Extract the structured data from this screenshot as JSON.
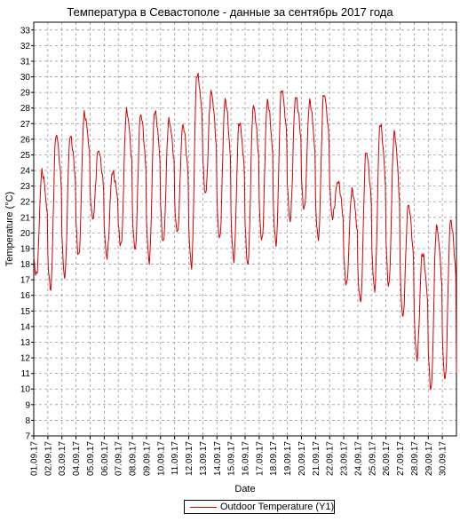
{
  "chart_data": {
    "type": "line",
    "title": "Температура в Севастополе - данные за сентябрь 2017 года",
    "xlabel": "Date",
    "ylabel": "Temperature (°C)",
    "ylim": [
      7,
      33.5
    ],
    "y_ticks": [
      7,
      8,
      9,
      10,
      11,
      12,
      13,
      14,
      15,
      16,
      17,
      18,
      19,
      20,
      21,
      22,
      23,
      24,
      25,
      26,
      27,
      28,
      29,
      30,
      31,
      32,
      33
    ],
    "x_ticks": [
      "01.09.17",
      "02.09.17",
      "03.09.17",
      "04.09.17",
      "05.09.17",
      "06.09.17",
      "07.09.17",
      "08.09.17",
      "09.09.17",
      "10.09.17",
      "11.09.17",
      "12.09.17",
      "13.09.17",
      "14.09.17",
      "15.09.17",
      "16.09.17",
      "17.09.17",
      "18.09.17",
      "19.09.17",
      "20.09.17",
      "21.09.17",
      "22.09.17",
      "23.09.17",
      "24.09.17",
      "25.09.17",
      "26.09.17",
      "27.09.17",
      "28.09.17",
      "29.09.17",
      "30.09.17"
    ],
    "grid": true,
    "legend_position": "bottom-center",
    "series": [
      {
        "name": "Outdoor Temperature (Y1)",
        "color": "#d40000",
        "daily_min": [
          17.3,
          16.4,
          17.2,
          18.5,
          20.9,
          18.5,
          19.2,
          18.9,
          18.2,
          19.4,
          20.0,
          17.9,
          22.5,
          19.6,
          18.3,
          18.0,
          19.5,
          19.3,
          20.8,
          21.5,
          19.6,
          21.0,
          16.7,
          15.6,
          16.4,
          16.6,
          14.6,
          12.0,
          10.0,
          10.6
        ],
        "daily_max": [
          23.9,
          26.3,
          26.2,
          27.6,
          25.3,
          23.9,
          27.8,
          27.6,
          27.8,
          27.2,
          26.9,
          30.2,
          29.0,
          28.5,
          27.1,
          28.1,
          28.4,
          29.2,
          28.7,
          28.4,
          28.9,
          23.3,
          22.7,
          25.2,
          27.0,
          26.4,
          21.8,
          18.7,
          20.4,
          20.8
        ],
        "end_value": 11.0
      }
    ]
  }
}
